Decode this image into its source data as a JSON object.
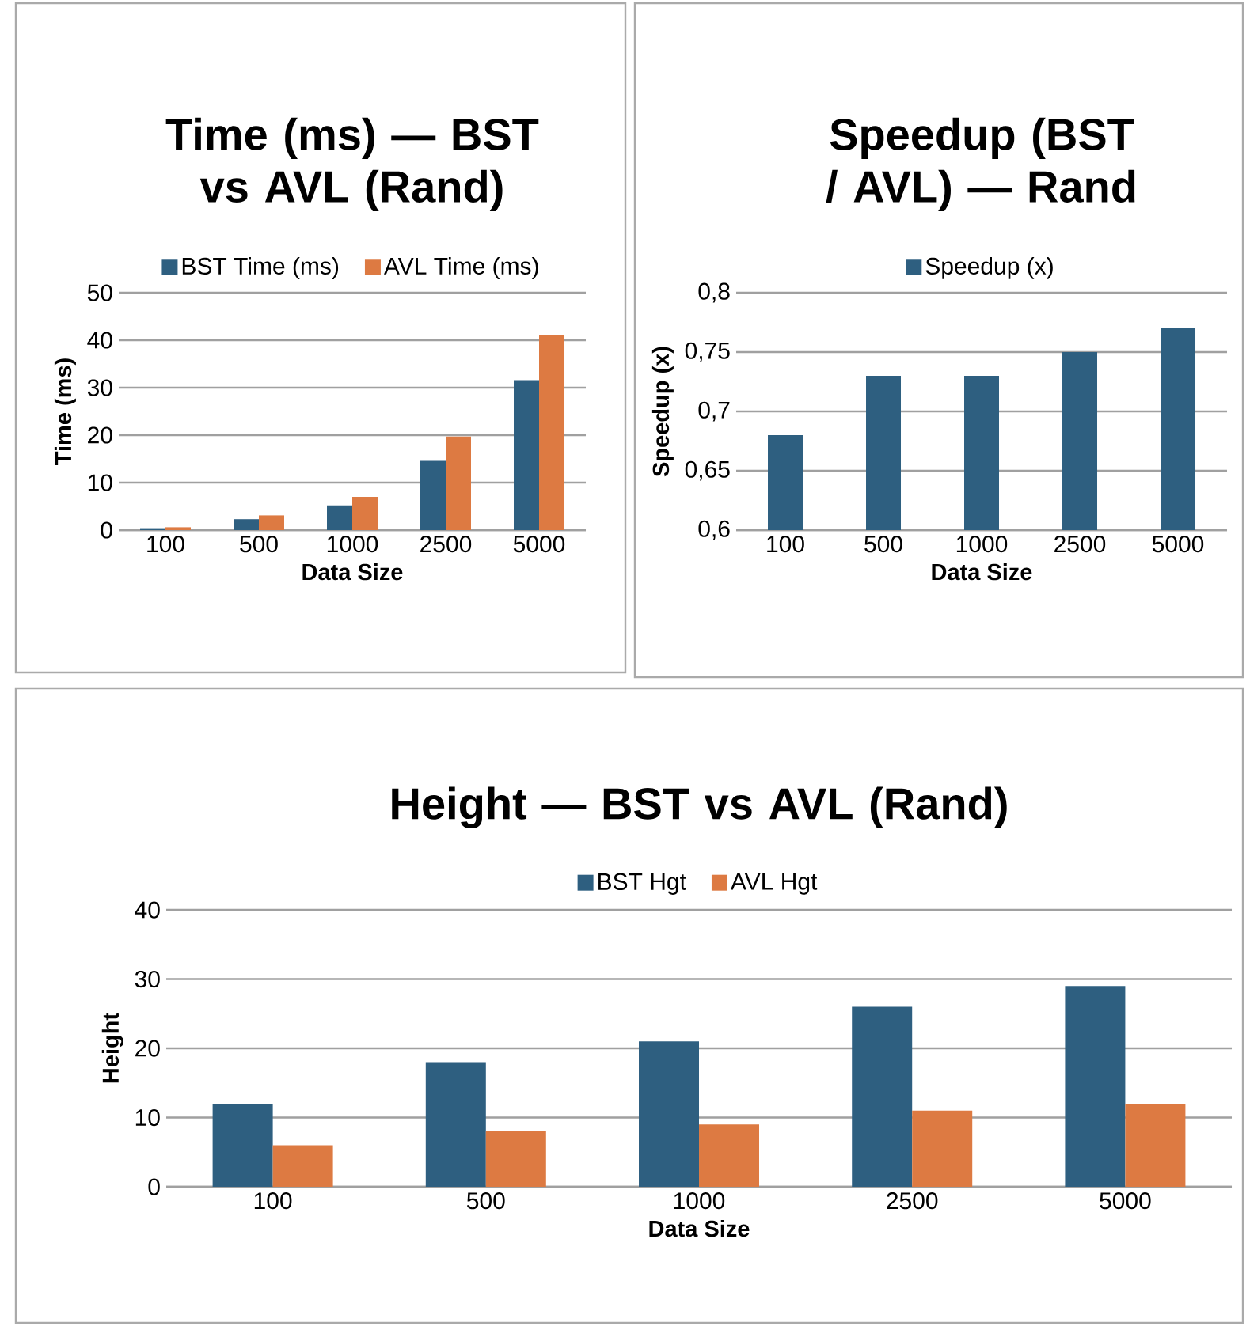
{
  "chart_data": [
    {
      "type": "bar",
      "title": "Time (ms) — BST vs AVL (Rand)",
      "xlabel": "Data Size",
      "ylabel": "Time (ms)",
      "categories": [
        "100",
        "500",
        "1000",
        "2500",
        "5000"
      ],
      "series": [
        {
          "name": "BST Time (ms)",
          "color": "#2e5f80",
          "values": [
            0.4,
            2.3,
            5.2,
            14.6,
            31.6
          ]
        },
        {
          "name": "AVL Time (ms)",
          "color": "#dd7a42",
          "values": [
            0.6,
            3.1,
            7.0,
            19.7,
            41.1
          ]
        }
      ],
      "ylim": [
        0,
        50
      ],
      "yticks": [
        0,
        10,
        20,
        30,
        40,
        50
      ],
      "grid": "y",
      "legend": "top"
    },
    {
      "type": "bar",
      "title": "Speedup (BST / AVL) — Rand",
      "xlabel": "Data Size",
      "ylabel": "Speedup (x)",
      "categories": [
        "100",
        "500",
        "1000",
        "2500",
        "5000"
      ],
      "series": [
        {
          "name": "Speedup (x)",
          "color": "#2e5f80",
          "values": [
            0.68,
            0.73,
            0.73,
            0.75,
            0.77
          ]
        }
      ],
      "ylim": [
        0.6,
        0.8
      ],
      "yticks": [
        {
          "value": 0.6,
          "label": "0,6"
        },
        {
          "value": 0.65,
          "label": "0,65"
        },
        {
          "value": 0.7,
          "label": "0,7"
        },
        {
          "value": 0.75,
          "label": "0,75"
        },
        {
          "value": 0.8,
          "label": "0,8"
        }
      ],
      "grid": "y",
      "legend": "top"
    },
    {
      "type": "bar",
      "title": "Height — BST vs AVL (Rand)",
      "xlabel": "Data Size",
      "ylabel": "Height",
      "categories": [
        "100",
        "500",
        "1000",
        "2500",
        "5000"
      ],
      "series": [
        {
          "name": "BST Hgt",
          "color": "#2e5f80",
          "values": [
            12,
            18,
            21,
            26,
            29
          ]
        },
        {
          "name": "AVL Hgt",
          "color": "#dd7a42",
          "values": [
            6,
            8,
            9,
            11,
            12
          ]
        }
      ],
      "ylim": [
        0,
        40
      ],
      "yticks": [
        0,
        10,
        20,
        30,
        40
      ],
      "grid": "y",
      "legend": "top"
    }
  ]
}
